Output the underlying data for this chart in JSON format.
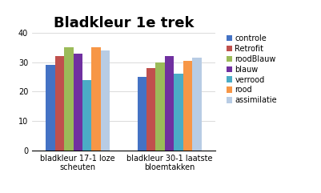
{
  "title": "Bladkleur 1e trek",
  "groups": [
    "bladkleur 17-1 loze\nscheuten",
    "bladkleur 30-1 laatste\nbloemtakken"
  ],
  "series": [
    {
      "label": "controle",
      "color": "#4472C4",
      "values": [
        29,
        25
      ]
    },
    {
      "label": "Retrofit",
      "color": "#C0504D",
      "values": [
        32,
        28
      ]
    },
    {
      "label": "roodBlauw",
      "color": "#9BBB59",
      "values": [
        35,
        30
      ]
    },
    {
      "label": "blauw",
      "color": "#7030A0",
      "values": [
        33,
        32
      ]
    },
    {
      "label": "verrood",
      "color": "#4BACC6",
      "values": [
        24,
        26
      ]
    },
    {
      "label": "rood",
      "color": "#F79646",
      "values": [
        35,
        30.5
      ]
    },
    {
      "label": "assimilatie",
      "color": "#B8CCE4",
      "values": [
        34,
        31.5
      ]
    }
  ],
  "ylim": [
    0,
    40
  ],
  "yticks": [
    0,
    10,
    20,
    30,
    40
  ],
  "background_color": "#FFFFFF",
  "title_fontsize": 13,
  "tick_fontsize": 7,
  "legend_fontsize": 7
}
